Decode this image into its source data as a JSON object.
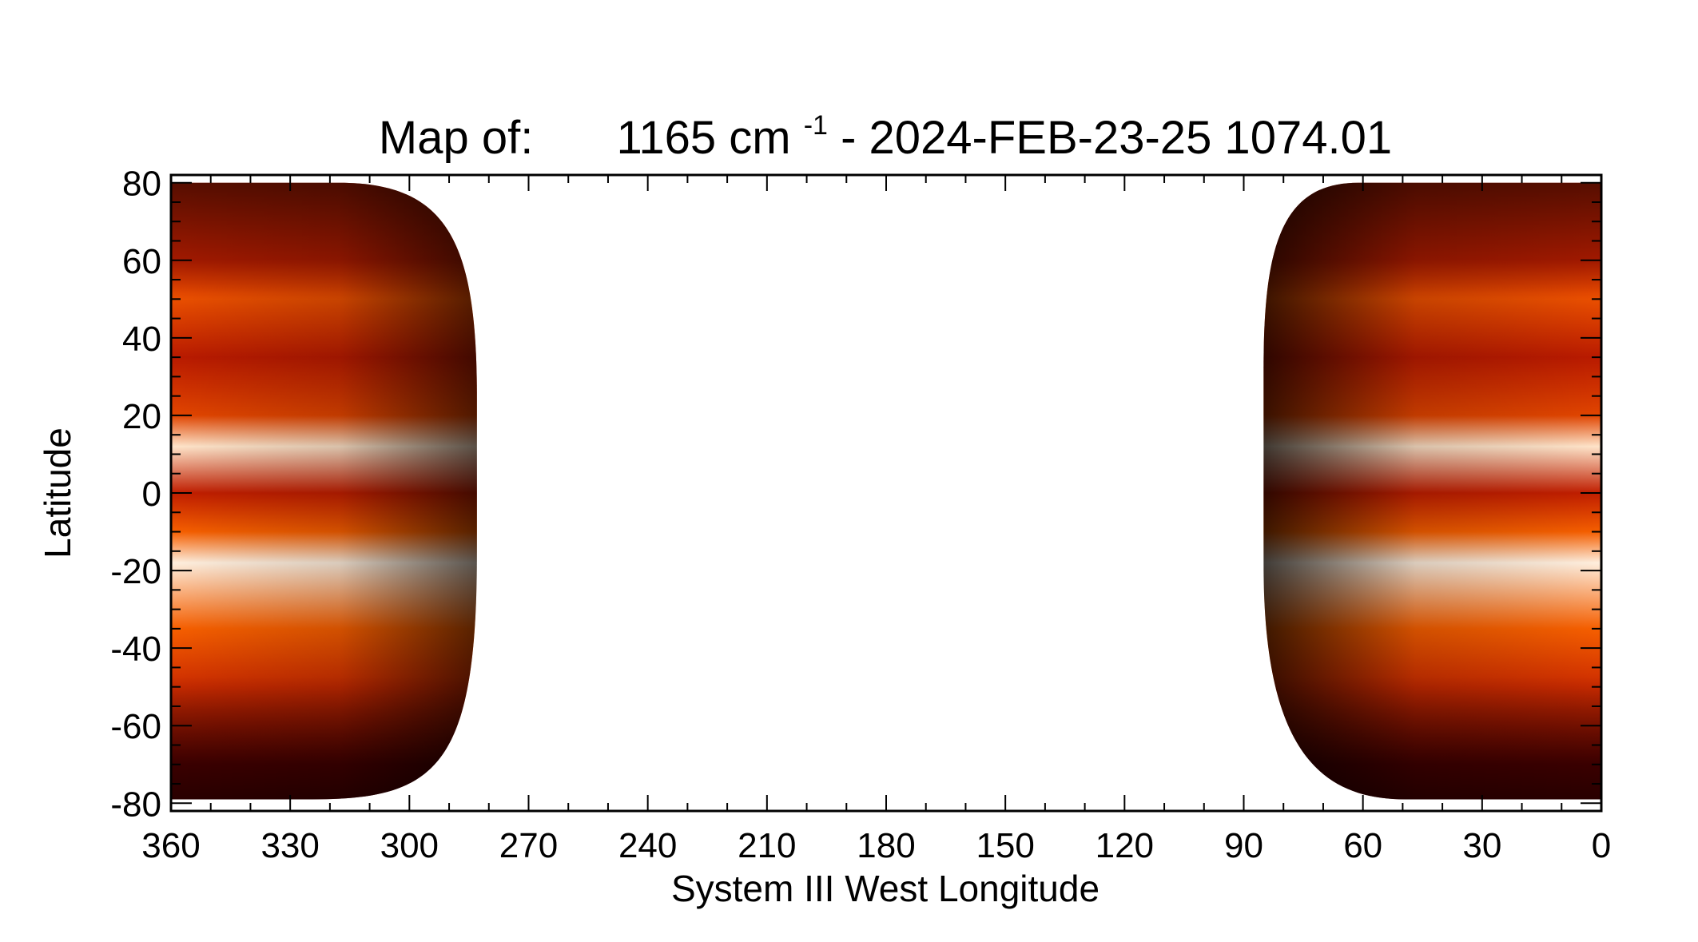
{
  "chart_data": {
    "type": "heatmap",
    "title": {
      "prefix": "Map of:",
      "wavenumber": "1165 cm",
      "exponent": "-1",
      "suffix": " - 2024-FEB-23-25 1074.01"
    },
    "xlabel": "System III West Longitude",
    "ylabel": "Latitude",
    "xlim": [
      360,
      0
    ],
    "ylim": [
      -82,
      82
    ],
    "x_ticks": [
      360,
      330,
      300,
      270,
      240,
      210,
      180,
      150,
      120,
      90,
      60,
      30,
      0
    ],
    "y_ticks": [
      -80,
      -60,
      -40,
      -20,
      0,
      20,
      40,
      60,
      80
    ],
    "colormap": [
      "#000000",
      "#3a0000",
      "#8b0000",
      "#c42000",
      "#ff6a00",
      "#ffa040",
      "#ffe8d0",
      "#ffffff"
    ],
    "coverage": [
      {
        "name": "left-region",
        "lon_range": [
          360,
          283
        ],
        "lat_range": [
          -79,
          80
        ]
      },
      {
        "name": "right-region",
        "lon_range": [
          85,
          0
        ],
        "lat_range": [
          -79,
          80
        ]
      }
    ],
    "bands": [
      {
        "lat": 60,
        "intensity": 0.42
      },
      {
        "lat": 50,
        "intensity": 0.52
      },
      {
        "lat": 35,
        "intensity": 0.4
      },
      {
        "lat": 20,
        "intensity": 0.5
      },
      {
        "lat": 12,
        "intensity": 0.85
      },
      {
        "lat": 0,
        "intensity": 0.42
      },
      {
        "lat": -10,
        "intensity": 0.55
      },
      {
        "lat": -18,
        "intensity": 0.9
      },
      {
        "lat": -35,
        "intensity": 0.55
      },
      {
        "lat": -50,
        "intensity": 0.45
      },
      {
        "lat": -70,
        "intensity": 0.22
      }
    ]
  }
}
